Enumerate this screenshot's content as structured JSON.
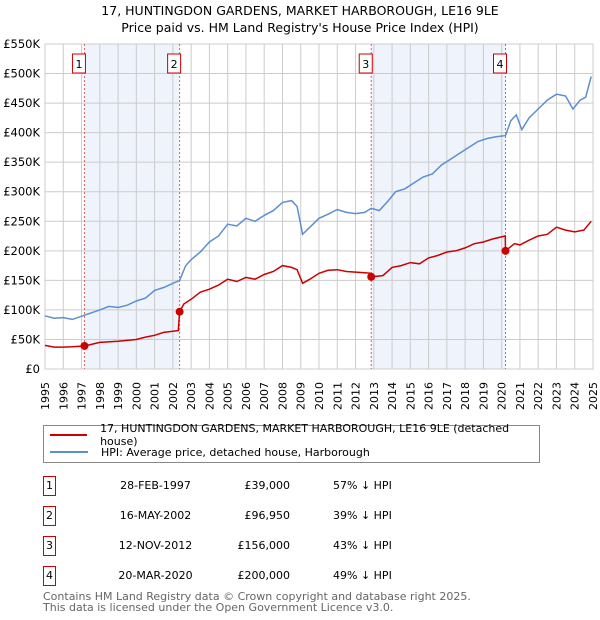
{
  "title_line1": "17, HUNTINGDON GARDENS, MARKET HARBOROUGH, LE16 9LE",
  "title_line2": "Price paid vs. HM Land Registry's House Price Index (HPI)",
  "chart_data": {
    "type": "line",
    "title": "17, HUNTINGDON GARDENS, MARKET HARBOROUGH, LE16 9LE — Price paid vs. HM Land Registry's House Price Index (HPI)",
    "xlim": [
      1995,
      2025
    ],
    "ylim": [
      0,
      550000
    ],
    "x_ticks": [
      "1995",
      "1996",
      "1997",
      "1998",
      "1999",
      "2000",
      "2001",
      "2002",
      "2003",
      "2004",
      "2005",
      "2006",
      "2007",
      "2008",
      "2009",
      "2010",
      "2011",
      "2012",
      "2013",
      "2014",
      "2015",
      "2016",
      "2017",
      "2018",
      "2019",
      "2020",
      "2021",
      "2022",
      "2023",
      "2024",
      "2025"
    ],
    "y_ticks": [
      {
        "v": 0,
        "label": "£0"
      },
      {
        "v": 50000,
        "label": "£50K"
      },
      {
        "v": 100000,
        "label": "£100K"
      },
      {
        "v": 150000,
        "label": "£150K"
      },
      {
        "v": 200000,
        "label": "£200K"
      },
      {
        "v": 250000,
        "label": "£250K"
      },
      {
        "v": 300000,
        "label": "£300K"
      },
      {
        "v": 350000,
        "label": "£350K"
      },
      {
        "v": 400000,
        "label": "£400K"
      },
      {
        "v": 450000,
        "label": "£450K"
      },
      {
        "v": 500000,
        "label": "£500K"
      },
      {
        "v": 550000,
        "label": "£550K"
      }
    ],
    "grid": true,
    "colors": {
      "property": "#cc0000",
      "hpi": "#5b8fd0",
      "shade": "#eef3fc",
      "marker_line": "#e06060"
    },
    "series": [
      {
        "name": "17, HUNTINGDON GARDENS, MARKET HARBOROUGH, LE16 9LE (detached house)",
        "key": "property",
        "x": [
          1995,
          1995.5,
          1996,
          1996.5,
          1997.16,
          1998,
          1999,
          2000,
          2000.5,
          2001,
          2001.5,
          2002.3,
          2002.37,
          2002.6,
          2003,
          2003.5,
          2004,
          2004.5,
          2005,
          2005.5,
          2006,
          2006.5,
          2007,
          2007.5,
          2008,
          2008.5,
          2008.8,
          2009.1,
          2009.5,
          2010,
          2010.5,
          2011,
          2011.5,
          2012,
          2012.5,
          2012.85,
          2012.86,
          2013.5,
          2014,
          2014.5,
          2015,
          2015.5,
          2016,
          2016.5,
          2017,
          2017.5,
          2018,
          2018.5,
          2019,
          2019.5,
          2020.2,
          2020.21,
          2020.7,
          2021,
          2021.5,
          2022,
          2022.5,
          2023,
          2023.5,
          2024,
          2024.5,
          2024.9
        ],
        "y": [
          40000,
          37000,
          37000,
          37500,
          39000,
          45000,
          47000,
          50000,
          54000,
          57000,
          62000,
          65000,
          96950,
          110000,
          118000,
          130000,
          135000,
          142000,
          152000,
          148000,
          155000,
          152000,
          160000,
          165000,
          175000,
          172000,
          168000,
          145000,
          152000,
          162000,
          167000,
          168000,
          165000,
          164000,
          163000,
          162000,
          156000,
          158000,
          172000,
          175000,
          180000,
          178000,
          188000,
          192000,
          198000,
          200000,
          205000,
          212000,
          215000,
          220000,
          225000,
          200000,
          212000,
          210000,
          218000,
          225000,
          228000,
          240000,
          235000,
          232000,
          235000,
          250000
        ]
      },
      {
        "name": "HPI: Average price, detached house, Harborough",
        "key": "hpi",
        "x": [
          1995,
          1995.5,
          1996,
          1996.5,
          1997.16,
          1998,
          1998.5,
          1999,
          1999.5,
          2000,
          2000.5,
          2001,
          2001.5,
          2002,
          2002.37,
          2002.7,
          2003,
          2003.5,
          2004,
          2004.5,
          2005,
          2005.5,
          2006,
          2006.5,
          2007,
          2007.5,
          2008,
          2008.5,
          2008.8,
          2009.1,
          2009.5,
          2010,
          2010.5,
          2011,
          2011.5,
          2012,
          2012.5,
          2012.86,
          2013.3,
          2013.8,
          2014.2,
          2014.7,
          2015.2,
          2015.7,
          2016.2,
          2016.7,
          2017.2,
          2017.7,
          2018.2,
          2018.7,
          2019.2,
          2019.7,
          2020.21,
          2020.5,
          2020.8,
          2021.1,
          2021.5,
          2022,
          2022.5,
          2023,
          2023.5,
          2023.9,
          2024.3,
          2024.6,
          2024.9
        ],
        "y": [
          90000,
          86000,
          87000,
          84000,
          91000,
          100000,
          106000,
          104000,
          108000,
          115000,
          120000,
          133000,
          138000,
          145000,
          150000,
          175000,
          185000,
          198000,
          215000,
          225000,
          245000,
          242000,
          255000,
          250000,
          260000,
          268000,
          282000,
          285000,
          275000,
          228000,
          240000,
          255000,
          262000,
          270000,
          265000,
          263000,
          265000,
          272000,
          268000,
          285000,
          300000,
          305000,
          315000,
          325000,
          330000,
          345000,
          355000,
          365000,
          375000,
          385000,
          390000,
          393000,
          395000,
          420000,
          430000,
          405000,
          425000,
          440000,
          455000,
          465000,
          462000,
          440000,
          455000,
          460000,
          495000
        ]
      }
    ],
    "annotations": [
      {
        "n": "1",
        "x": 1997.16,
        "y": 39000
      },
      {
        "n": "2",
        "x": 2002.37,
        "y": 96950
      },
      {
        "n": "3",
        "x": 2012.86,
        "y": 156000
      },
      {
        "n": "4",
        "x": 2020.21,
        "y": 200000
      }
    ],
    "shaded_ranges": [
      [
        1997.16,
        2002.37
      ],
      [
        2012.86,
        2020.21
      ]
    ],
    "legend_position": "below"
  },
  "legend": [
    {
      "label": "17, HUNTINGDON GARDENS, MARKET HARBOROUGH, LE16 9LE (detached house)",
      "color": "#cc0000"
    },
    {
      "label": "HPI: Average price, detached house, Harborough",
      "color": "#5b8fd0"
    }
  ],
  "transactions": [
    {
      "n": "1",
      "date": "28-FEB-1997",
      "price": "£39,000",
      "hpi": "57% ↓ HPI"
    },
    {
      "n": "2",
      "date": "16-MAY-2002",
      "price": "£96,950",
      "hpi": "39% ↓ HPI"
    },
    {
      "n": "3",
      "date": "12-NOV-2012",
      "price": "£156,000",
      "hpi": "43% ↓ HPI"
    },
    {
      "n": "4",
      "date": "20-MAR-2020",
      "price": "£200,000",
      "hpi": "49% ↓ HPI"
    }
  ],
  "footer_line1": "Contains HM Land Registry data © Crown copyright and database right 2025.",
  "footer_line2": "This data is licensed under the Open Government Licence v3.0."
}
